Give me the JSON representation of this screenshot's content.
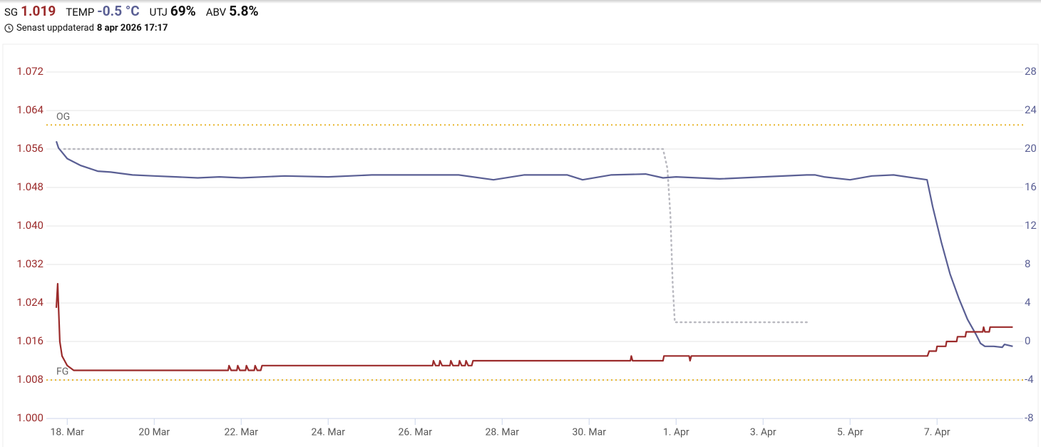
{
  "header": {
    "stats": [
      {
        "label": "SG",
        "value": "1.019"
      },
      {
        "label": "TEMP",
        "value": "-0.5 °C"
      },
      {
        "label": "UTJ",
        "value": "69%"
      },
      {
        "label": "ABV",
        "value": "5.8%"
      }
    ],
    "updated": {
      "label": "Senast uppdaterad",
      "value": "8 apr 2026 17:17"
    }
  },
  "chart_data": {
    "type": "line",
    "xlim": [
      17.52,
      39.98
    ],
    "xticks": [
      {
        "value": 18,
        "label": "18. Mar"
      },
      {
        "value": 20,
        "label": "20 Mar"
      },
      {
        "value": 22,
        "label": "22. Mar"
      },
      {
        "value": 24,
        "label": "24. Mar"
      },
      {
        "value": 26,
        "label": "26. Mar"
      },
      {
        "value": 28,
        "label": "28. Mar"
      },
      {
        "value": 30,
        "label": "30. Mar"
      },
      {
        "value": 32,
        "label": "1. Apr"
      },
      {
        "value": 34,
        "label": "3. Apr"
      },
      {
        "value": 36,
        "label": "5. Apr"
      },
      {
        "value": 38,
        "label": "7. Apr"
      }
    ],
    "ylim": [
      1,
      1.072
    ],
    "yticks": [
      {
        "value": 1,
        "label": "1.000"
      },
      1.008,
      1.016,
      1.024,
      1.032,
      {
        "value": 1.04,
        "label": "1.040"
      },
      1.048,
      1.056,
      1.064,
      1.072
    ],
    "y2lim": [
      -8,
      28
    ],
    "y2ticks": [
      -8,
      -4,
      0,
      4,
      8,
      12,
      16,
      20,
      24,
      28
    ],
    "grid": true,
    "reference_lines": [
      {
        "label": "OG",
        "value": 1.061,
        "color": "#e8b730"
      },
      {
        "label": "FG",
        "value": 1.008,
        "color": "#e8b730"
      }
    ],
    "series": [
      {
        "color": "#b9b9c0",
        "axis": "y2",
        "style": "dotted",
        "x": [
          17.93,
          31.7,
          31.8,
          31.87,
          31.92,
          31.97,
          35.07
        ],
        "values": [
          20,
          20,
          18,
          13,
          6,
          2,
          2
        ]
      },
      {
        "color": "#5a5f94",
        "axis": "y2",
        "style": "solid",
        "x": [
          17.75,
          17.8,
          18.0,
          18.3,
          18.7,
          19.0,
          19.5,
          20.0,
          20.5,
          21.0,
          21.5,
          22.0,
          23.0,
          24.0,
          25.0,
          26.0,
          27.0,
          27.8,
          28.5,
          29.5,
          29.85,
          30.5,
          31.3,
          31.7,
          32.0,
          32.5,
          33.0,
          34.0,
          35.0,
          35.2,
          35.4,
          36.0,
          36.5,
          37.0,
          37.77,
          37.9,
          38.1,
          38.3,
          38.5,
          38.7,
          38.9,
          39.0,
          39.1,
          39.3,
          39.5,
          39.55,
          39.74
        ],
        "values": [
          20.8,
          20.1,
          19.0,
          18.3,
          17.7,
          17.6,
          17.3,
          17.2,
          17.1,
          17.0,
          17.1,
          17.0,
          17.2,
          17.1,
          17.3,
          17.3,
          17.3,
          16.8,
          17.3,
          17.3,
          16.8,
          17.3,
          17.4,
          17.0,
          17.1,
          17.0,
          16.9,
          17.1,
          17.3,
          17.3,
          17.1,
          16.8,
          17.2,
          17.3,
          16.8,
          14.0,
          10.3,
          7.0,
          4.5,
          2.3,
          0.7,
          -0.2,
          -0.5,
          -0.5,
          -0.6,
          -0.3,
          -0.5
        ]
      },
      {
        "color": "#9b2b2b",
        "axis": "y",
        "style": "solid",
        "x": [
          17.75,
          17.78,
          17.83,
          17.88,
          18.0,
          18.15,
          21.7,
          21.72,
          21.77,
          21.9,
          21.92,
          21.97,
          22.1,
          22.12,
          22.17,
          22.3,
          22.32,
          22.37,
          22.45,
          22.48,
          26.4,
          26.42,
          26.47,
          26.55,
          26.57,
          26.62,
          26.8,
          26.82,
          26.87,
          27.0,
          27.02,
          27.07,
          27.15,
          27.17,
          27.22,
          27.3,
          27.33,
          30.95,
          30.97,
          31.0,
          31.7,
          31.72,
          32.3,
          32.32,
          32.35,
          37.78,
          37.82,
          37.98,
          38.0,
          38.2,
          38.22,
          38.45,
          38.47,
          38.65,
          38.67,
          39.05,
          39.07,
          39.1,
          39.2,
          39.22,
          39.74
        ],
        "values": [
          1.023,
          1.028,
          1.016,
          1.013,
          1.011,
          1.01,
          1.01,
          1.011,
          1.01,
          1.01,
          1.011,
          1.01,
          1.01,
          1.011,
          1.01,
          1.01,
          1.011,
          1.01,
          1.01,
          1.011,
          1.011,
          1.012,
          1.011,
          1.011,
          1.012,
          1.011,
          1.011,
          1.012,
          1.011,
          1.011,
          1.012,
          1.011,
          1.011,
          1.012,
          1.011,
          1.011,
          1.012,
          1.012,
          1.013,
          1.012,
          1.012,
          1.013,
          1.013,
          1.012,
          1.013,
          1.013,
          1.014,
          1.014,
          1.015,
          1.015,
          1.016,
          1.016,
          1.017,
          1.017,
          1.018,
          1.018,
          1.019,
          1.018,
          1.018,
          1.019,
          1.019
        ]
      }
    ]
  }
}
